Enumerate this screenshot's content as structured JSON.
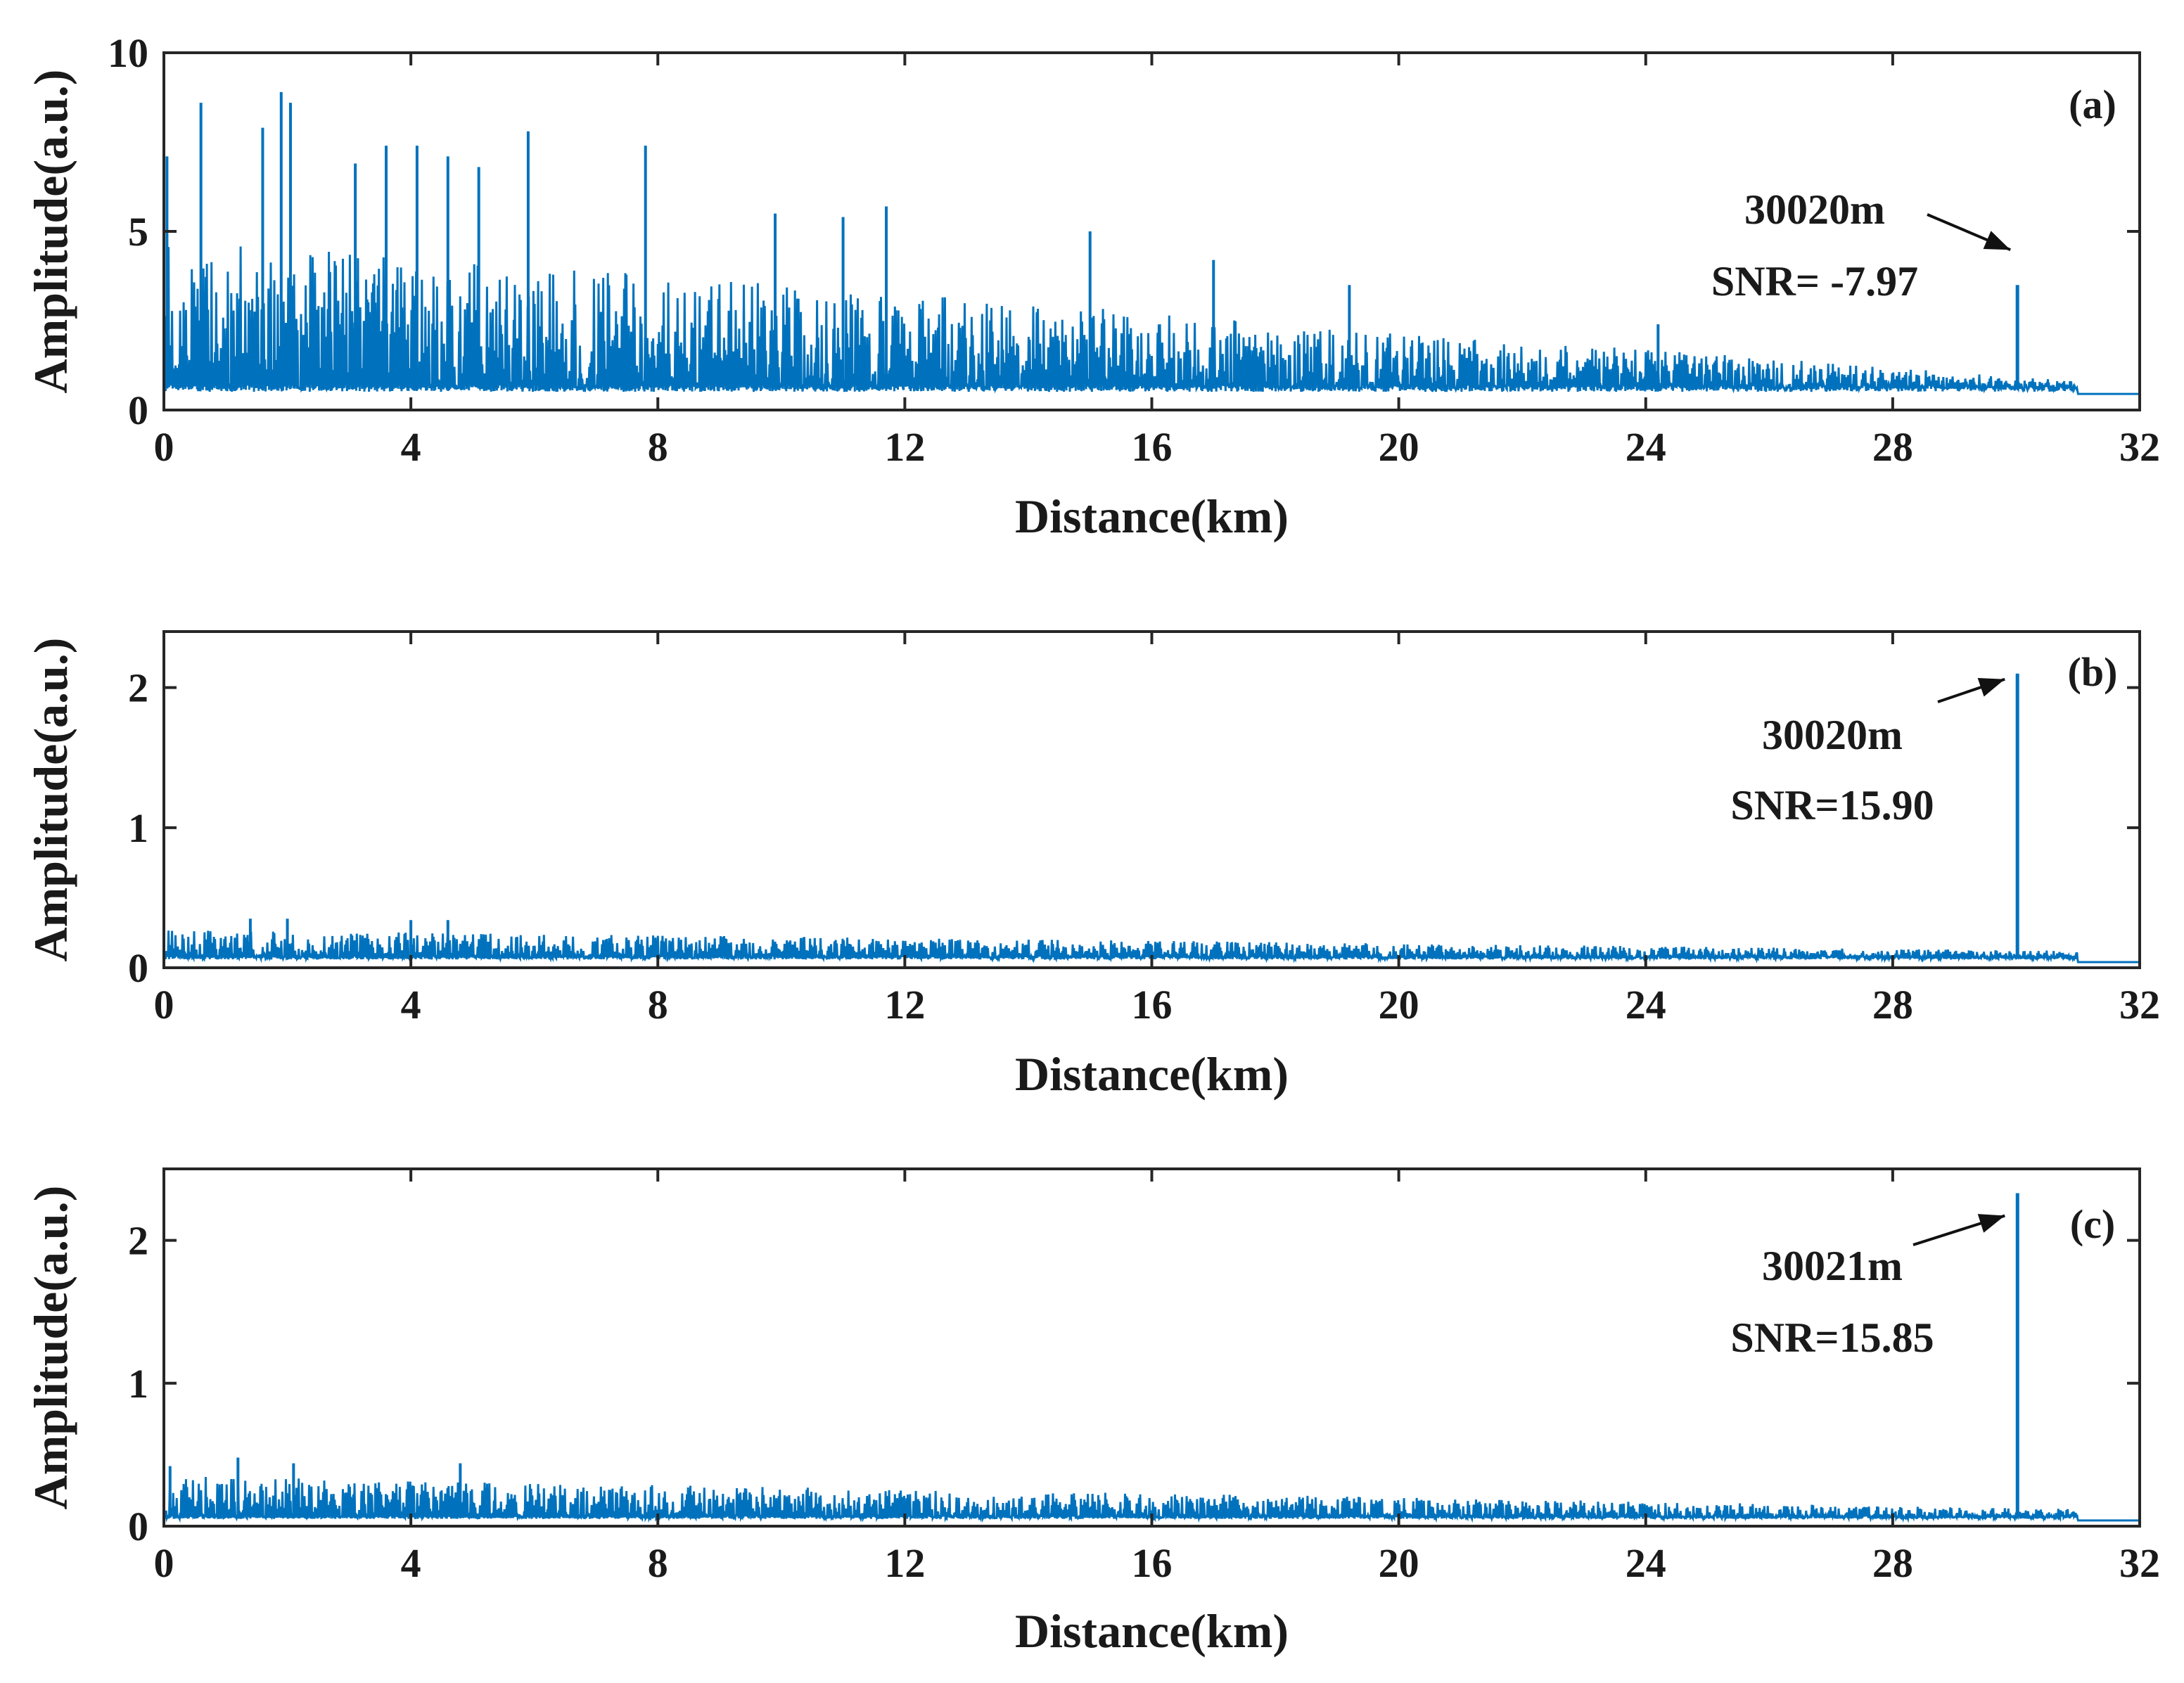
{
  "chart_data": [
    {
      "type": "line",
      "panel": "(a)",
      "xlabel": "Distance(km)",
      "ylabel": "Amplitude(a.u.)",
      "xlim": [
        0,
        32
      ],
      "ylim": [
        0,
        10
      ],
      "xticks": [
        0,
        4,
        8,
        12,
        16,
        20,
        24,
        28,
        32
      ],
      "yticks": [
        0,
        5,
        10
      ],
      "line_color": "#0072BD",
      "noise": {
        "baseline": 0.6,
        "peak_start": 4.8,
        "peak_end": 0.8,
        "tail_level": 0.45,
        "cutoff_km": 31.0
      },
      "spikes": [
        {
          "x": 0.05,
          "y": 7.1
        },
        {
          "x": 0.6,
          "y": 8.6
        },
        {
          "x": 1.6,
          "y": 7.9
        },
        {
          "x": 1.9,
          "y": 8.9
        },
        {
          "x": 2.05,
          "y": 8.6
        },
        {
          "x": 3.1,
          "y": 6.9
        },
        {
          "x": 3.6,
          "y": 7.4
        },
        {
          "x": 4.1,
          "y": 7.4
        },
        {
          "x": 4.6,
          "y": 7.1
        },
        {
          "x": 5.1,
          "y": 6.8
        },
        {
          "x": 5.9,
          "y": 7.8
        },
        {
          "x": 7.8,
          "y": 7.4
        },
        {
          "x": 9.9,
          "y": 5.5
        },
        {
          "x": 11.0,
          "y": 5.4
        },
        {
          "x": 11.7,
          "y": 5.7
        },
        {
          "x": 15.0,
          "y": 5.0
        },
        {
          "x": 17.0,
          "y": 4.2
        },
        {
          "x": 19.2,
          "y": 3.5
        },
        {
          "x": 24.2,
          "y": 2.4
        }
      ],
      "target": {
        "x": 30.02,
        "y": 3.5
      },
      "annotation": {
        "distance": "30020m",
        "snr": "SNR= -7.97"
      }
    },
    {
      "type": "line",
      "panel": "(b)",
      "xlabel": "Distance(km)",
      "ylabel": "Amplitude(a.u.)",
      "xlim": [
        0,
        32
      ],
      "ylim": [
        0,
        2.4
      ],
      "xticks": [
        0,
        4,
        8,
        12,
        16,
        20,
        24,
        28,
        32
      ],
      "yticks": [
        0,
        1,
        2
      ],
      "line_color": "#0072BD",
      "noise": {
        "baseline": 0.07,
        "peak_start": 0.27,
        "peak_end": 0.12,
        "tail_level": 0.04,
        "cutoff_km": 31.0
      },
      "spikes": [
        {
          "x": 1.4,
          "y": 0.35
        },
        {
          "x": 2.0,
          "y": 0.35
        },
        {
          "x": 4.0,
          "y": 0.34
        },
        {
          "x": 4.6,
          "y": 0.34
        }
      ],
      "target": {
        "x": 30.02,
        "y": 2.1
      },
      "annotation": {
        "distance": "30020m",
        "snr": "SNR=15.90"
      }
    },
    {
      "type": "line",
      "panel": "(c)",
      "xlabel": "Distance(km)",
      "ylabel": "Amplitude(a.u.)",
      "xlim": [
        0,
        32
      ],
      "ylim": [
        0,
        2.5
      ],
      "xticks": [
        0,
        4,
        8,
        12,
        16,
        20,
        24,
        28,
        32
      ],
      "yticks": [
        0,
        1,
        2
      ],
      "line_color": "#0072BD",
      "noise": {
        "baseline": 0.06,
        "peak_start": 0.35,
        "peak_end": 0.12,
        "tail_level": 0.04,
        "cutoff_km": 31.0
      },
      "spikes": [
        {
          "x": 0.1,
          "y": 0.42
        },
        {
          "x": 1.2,
          "y": 0.48
        },
        {
          "x": 2.1,
          "y": 0.44
        },
        {
          "x": 4.8,
          "y": 0.44
        }
      ],
      "target": {
        "x": 30.021,
        "y": 2.33
      },
      "annotation": {
        "distance": "30021m",
        "snr": "SNR=15.85"
      }
    }
  ]
}
